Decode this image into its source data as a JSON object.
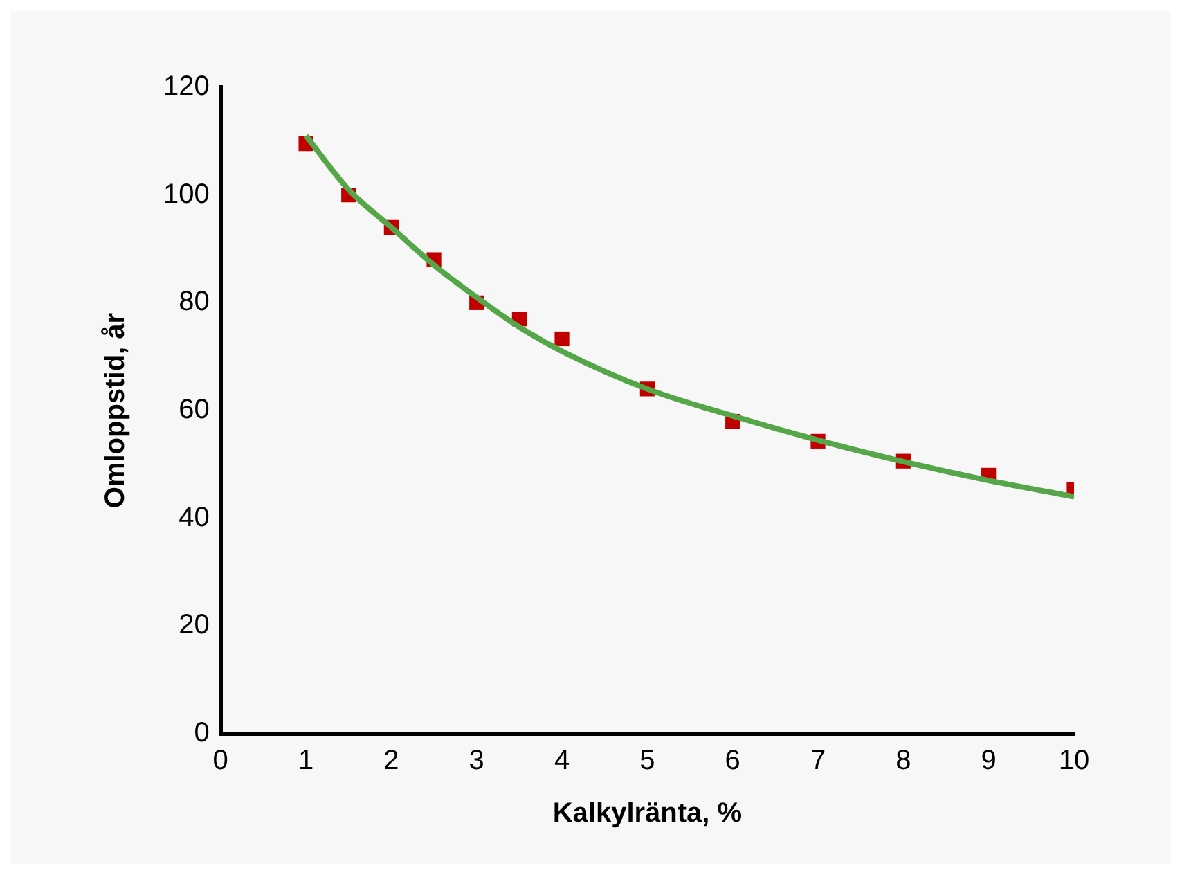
{
  "chart_data": {
    "type": "scatter",
    "xlabel": "Kalkylränta, %",
    "ylabel": "Omloppstid, år",
    "xlim": [
      0,
      10
    ],
    "xticks": [
      0,
      1,
      2,
      3,
      4,
      5,
      6,
      7,
      8,
      9,
      10
    ],
    "ylim": [
      0,
      120
    ],
    "yticks": [
      0,
      20,
      40,
      60,
      80,
      100,
      120
    ],
    "grid": false,
    "legend": false,
    "series": [
      {
        "type": "line",
        "color": "#55a648",
        "marker": "none",
        "line_style": "solid",
        "x": [
          1,
          1.5,
          2,
          2.5,
          3,
          3.5,
          4,
          5,
          6,
          7,
          8,
          9,
          10
        ],
        "values": [
          111,
          101,
          94,
          87,
          81,
          75.5,
          71,
          64,
          59,
          54.5,
          50.5,
          47,
          44
        ]
      },
      {
        "color": "#c00000",
        "marker": "square",
        "x": [
          1,
          1.5,
          2,
          2.5,
          3,
          3.5,
          4,
          5,
          6,
          7,
          8,
          9,
          10
        ],
        "values": [
          109.5,
          100,
          94,
          88,
          80,
          77,
          73.3,
          64,
          58,
          54.3,
          50.6,
          48,
          45.4
        ]
      }
    ]
  }
}
